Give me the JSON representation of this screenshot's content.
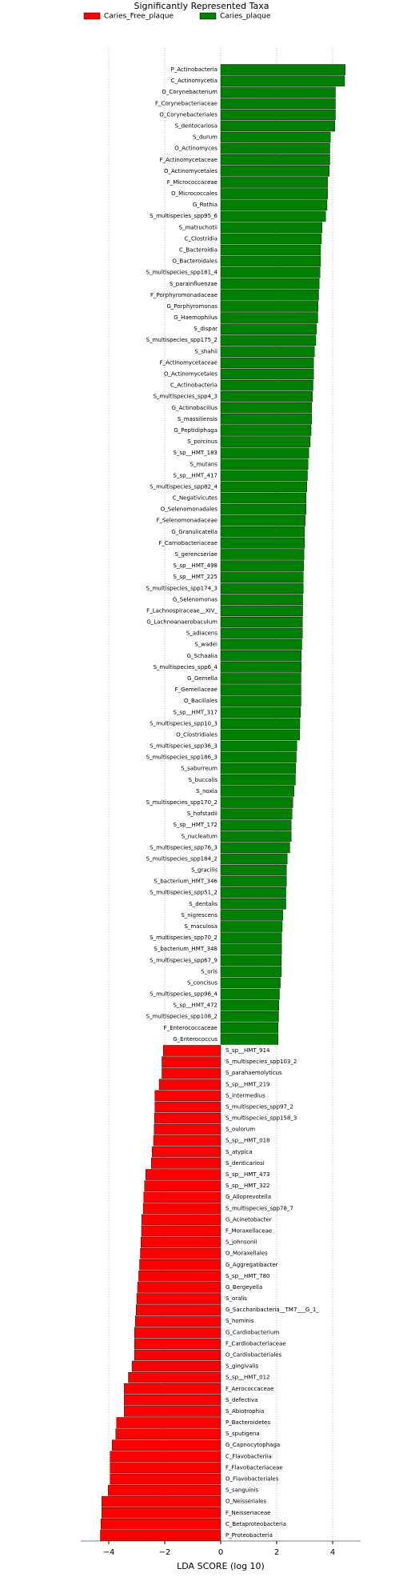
{
  "chart_data": {
    "type": "hbar",
    "title": "Significantly Represented Taxa",
    "xlabel": "LDA SCORE (log 10)",
    "xlim": [
      -5,
      5
    ],
    "xticks": [
      {
        "value": -4,
        "label": "−4"
      },
      {
        "value": -2,
        "label": "−2"
      },
      0,
      2,
      4
    ],
    "grid": true,
    "legend": "top",
    "series": [
      {
        "name": "Caries_plaque",
        "color": "#008000",
        "categories": [
          "P_Actinobacteria",
          "C_Actinomycetia",
          "O_Corynebacterium",
          "F_Corynebacteriaceae",
          "O_Corynebacteriales",
          "S_dentocariosa",
          "S_durum",
          "O_Actinomyces",
          "F_Actinomycetaceae",
          "O_Actinomycetales",
          "F_Micrococcaceae",
          "O_Micrococcales",
          "G_Rothia",
          "S_multispecies_spp95_6",
          "S_matruchotii",
          "C_Clostridia",
          "C_Bacteroidia",
          "O_Bacteroidales",
          "S_multispecies_spp181_4",
          "S_parainfluenzae",
          "F_Porphyromonadaceae",
          "G_Porphyromonas",
          "G_Haemophilus",
          "S_dispar",
          "S_multispecies_spp175_2",
          "S_shahii",
          "F_Actinomycetaceae",
          "O_Actinomycetales",
          "C_Actinobacteria",
          "S_multispecies_spp4_3",
          "G_Actinobacillus",
          "S_massiliensis",
          "G_Peptidiphaga",
          "S_porcinus",
          "S_sp__HMT_183",
          "S_mutans",
          "S_sp__HMT_417",
          "S_multispecies_spp82_4",
          "C_Negativicutes",
          "O_Selenomonadales",
          "F_Selenomonadaceae",
          "G_Granulicatella",
          "F_Carnobacteriaceae",
          "S_gerencseriae",
          "S_sp__HMT_498",
          "S_sp__HMT_225",
          "S_multispecies_spp174_3",
          "G_Selenomonas",
          "F_Lachnospiraceae__XIV_",
          "G_Lachnoanaerobaculum",
          "S_adiacens",
          "S_wadei",
          "G_Schaalia",
          "S_multispecies_spp6_4",
          "G_Gemella",
          "F_Gemellaceae",
          "O_Bacillales",
          "S_sp__HMT_317",
          "S_multispecies_spp10_3",
          "O_Clostridiales",
          "S_multispecies_spp36_3",
          "S_multispecies_spp186_3",
          "S_saburreum",
          "S_buccalis",
          "S_noxia",
          "S_multispecies_spp170_2",
          "S_hofstadii",
          "S_sp__HMT_172",
          "S_nucleatum",
          "S_multispecies_spp76_3",
          "S_multispecies_spp184_2",
          "S_gracilis",
          "S_bacterium_HMT_346",
          "S_multispecies_spp51_2",
          "S_dentalis",
          "S_nigrescens",
          "S_maculosa",
          "S_multispecies_spp70_2",
          "S_bacterium_HMT_348",
          "S_multispecies_spp67_9",
          "S_oris",
          "S_concisus",
          "S_multispecies_spp96_4",
          "S_sp__HMT_472",
          "S_multispecies_spp108_2",
          "F_Enterococcaceae",
          "G_Enterococcus"
        ],
        "values": [
          4.45,
          4.43,
          4.1,
          4.1,
          4.1,
          4.08,
          3.92,
          3.9,
          3.9,
          3.88,
          3.82,
          3.82,
          3.8,
          3.75,
          3.62,
          3.6,
          3.57,
          3.57,
          3.55,
          3.52,
          3.5,
          3.48,
          3.47,
          3.42,
          3.4,
          3.35,
          3.32,
          3.32,
          3.3,
          3.28,
          3.25,
          3.25,
          3.23,
          3.2,
          3.15,
          3.12,
          3.1,
          3.08,
          3.05,
          3.05,
          3.02,
          3.0,
          3.0,
          2.98,
          2.97,
          2.95,
          2.95,
          2.93,
          2.93,
          2.92,
          2.92,
          2.9,
          2.88,
          2.88,
          2.87,
          2.87,
          2.87,
          2.85,
          2.83,
          2.82,
          2.72,
          2.7,
          2.68,
          2.67,
          2.62,
          2.58,
          2.55,
          2.52,
          2.52,
          2.47,
          2.38,
          2.35,
          2.35,
          2.33,
          2.33,
          2.22,
          2.2,
          2.18,
          2.18,
          2.17,
          2.17,
          2.13,
          2.1,
          2.08,
          2.07,
          2.05,
          2.05
        ]
      },
      {
        "name": "Caries_Free_plaque",
        "color": "#ff0000",
        "categories": [
          "S_sp__HMT_914",
          "S_multispecies_spp103_2",
          "S_parahaemolyticus",
          "S_sp__HMT_219",
          "S_intermedius",
          "S_multispecies_spp97_2",
          "S_multispecies_spp158_3",
          "S_oulorum",
          "S_sp__HMT_018",
          "S_atypica",
          "S_denticariosi",
          "S_sp__HMT_473",
          "S_sp__HMT_322",
          "G_Alloprevotella",
          "S_multispecies_spp78_7",
          "G_Acinetobacter",
          "F_Moraxellaceae",
          "S_johnsonii",
          "O_Moraxellales",
          "G_Aggregatibacter",
          "S_sp__HMT_780",
          "G_Bergeyella",
          "S_oralis",
          "G_Saccharibacteria__TM7___G_1_",
          "S_hominis",
          "G_Cardiobacterium",
          "F_Cardiobacteriaceae",
          "O_Cardiobacteriales",
          "S_gingivalis",
          "S_sp__HMT_012",
          "F_Aerococcaceae",
          "S_defectiva",
          "S_Abiotrophia",
          "P_Bacteroidetes",
          "S_sputigena",
          "G_Capnocytophaga",
          "C_Flavobacteriia",
          "F_Flavobacteriaceae",
          "O_Flavobacteriales",
          "S_sanguinis",
          "O_Neisseriales",
          "F_Neisseriaceae",
          "C_Betaproteobacteria",
          "P_Proteobacteria"
        ],
        "values": [
          -2.05,
          -2.1,
          -2.1,
          -2.2,
          -2.35,
          -2.35,
          -2.37,
          -2.38,
          -2.4,
          -2.45,
          -2.48,
          -2.68,
          -2.72,
          -2.75,
          -2.77,
          -2.82,
          -2.83,
          -2.85,
          -2.87,
          -2.9,
          -2.93,
          -2.97,
          -3.0,
          -3.02,
          -3.05,
          -3.08,
          -3.08,
          -3.08,
          -3.17,
          -3.3,
          -3.45,
          -3.45,
          -3.45,
          -3.72,
          -3.75,
          -3.88,
          -3.95,
          -3.95,
          -3.95,
          -4.02,
          -4.25,
          -4.25,
          -4.28,
          -4.3
        ]
      }
    ]
  }
}
